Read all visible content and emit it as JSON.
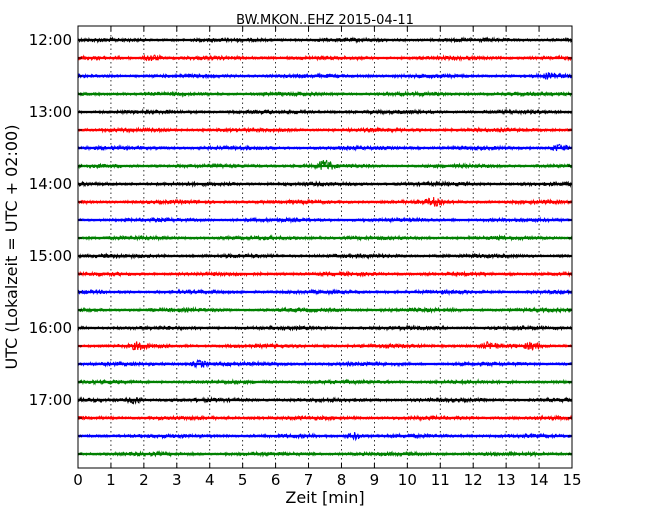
{
  "chart_data": {
    "type": "line",
    "title": "BW.MKON..EHZ 2015-04-11",
    "xlabel": "Zeit  [min]",
    "ylabel": "UTC (Lokalzeit = UTC + 02:00)",
    "xlim": [
      0,
      15
    ],
    "x_ticks": [
      "0",
      "1",
      "2",
      "3",
      "4",
      "5",
      "6",
      "7",
      "8",
      "9",
      "10",
      "11",
      "12",
      "13",
      "14",
      "15"
    ],
    "y_ticks": [
      "12:00",
      "13:00",
      "14:00",
      "15:00",
      "16:00",
      "17:00"
    ],
    "grid": "vertical dotted",
    "trace_interval_minutes": 15,
    "first_trace": "12:00",
    "trace_count": 24,
    "color_cycle": [
      "#000000",
      "#ff0000",
      "#0000ff",
      "#008000"
    ],
    "events": [
      {
        "time": "12:15",
        "minute": 2.25,
        "amplitude": "small"
      },
      {
        "time": "12:30",
        "minute": 14.4,
        "amplitude": "small"
      },
      {
        "time": "13:30",
        "minute": 14.6,
        "amplitude": "small"
      },
      {
        "time": "13:45",
        "minute": 7.5,
        "amplitude": "medium"
      },
      {
        "time": "14:15",
        "minute": 10.8,
        "amplitude": "small"
      },
      {
        "time": "16:15",
        "minute": 1.85,
        "amplitude": "small"
      },
      {
        "time": "16:15",
        "minute": 12.5,
        "amplitude": "small"
      },
      {
        "time": "16:15",
        "minute": 13.8,
        "amplitude": "small"
      },
      {
        "time": "16:30",
        "minute": 3.7,
        "amplitude": "small"
      },
      {
        "time": "17:00",
        "minute": 1.75,
        "amplitude": "small"
      },
      {
        "time": "17:30",
        "minute": 8.4,
        "amplitude": "small"
      }
    ]
  }
}
